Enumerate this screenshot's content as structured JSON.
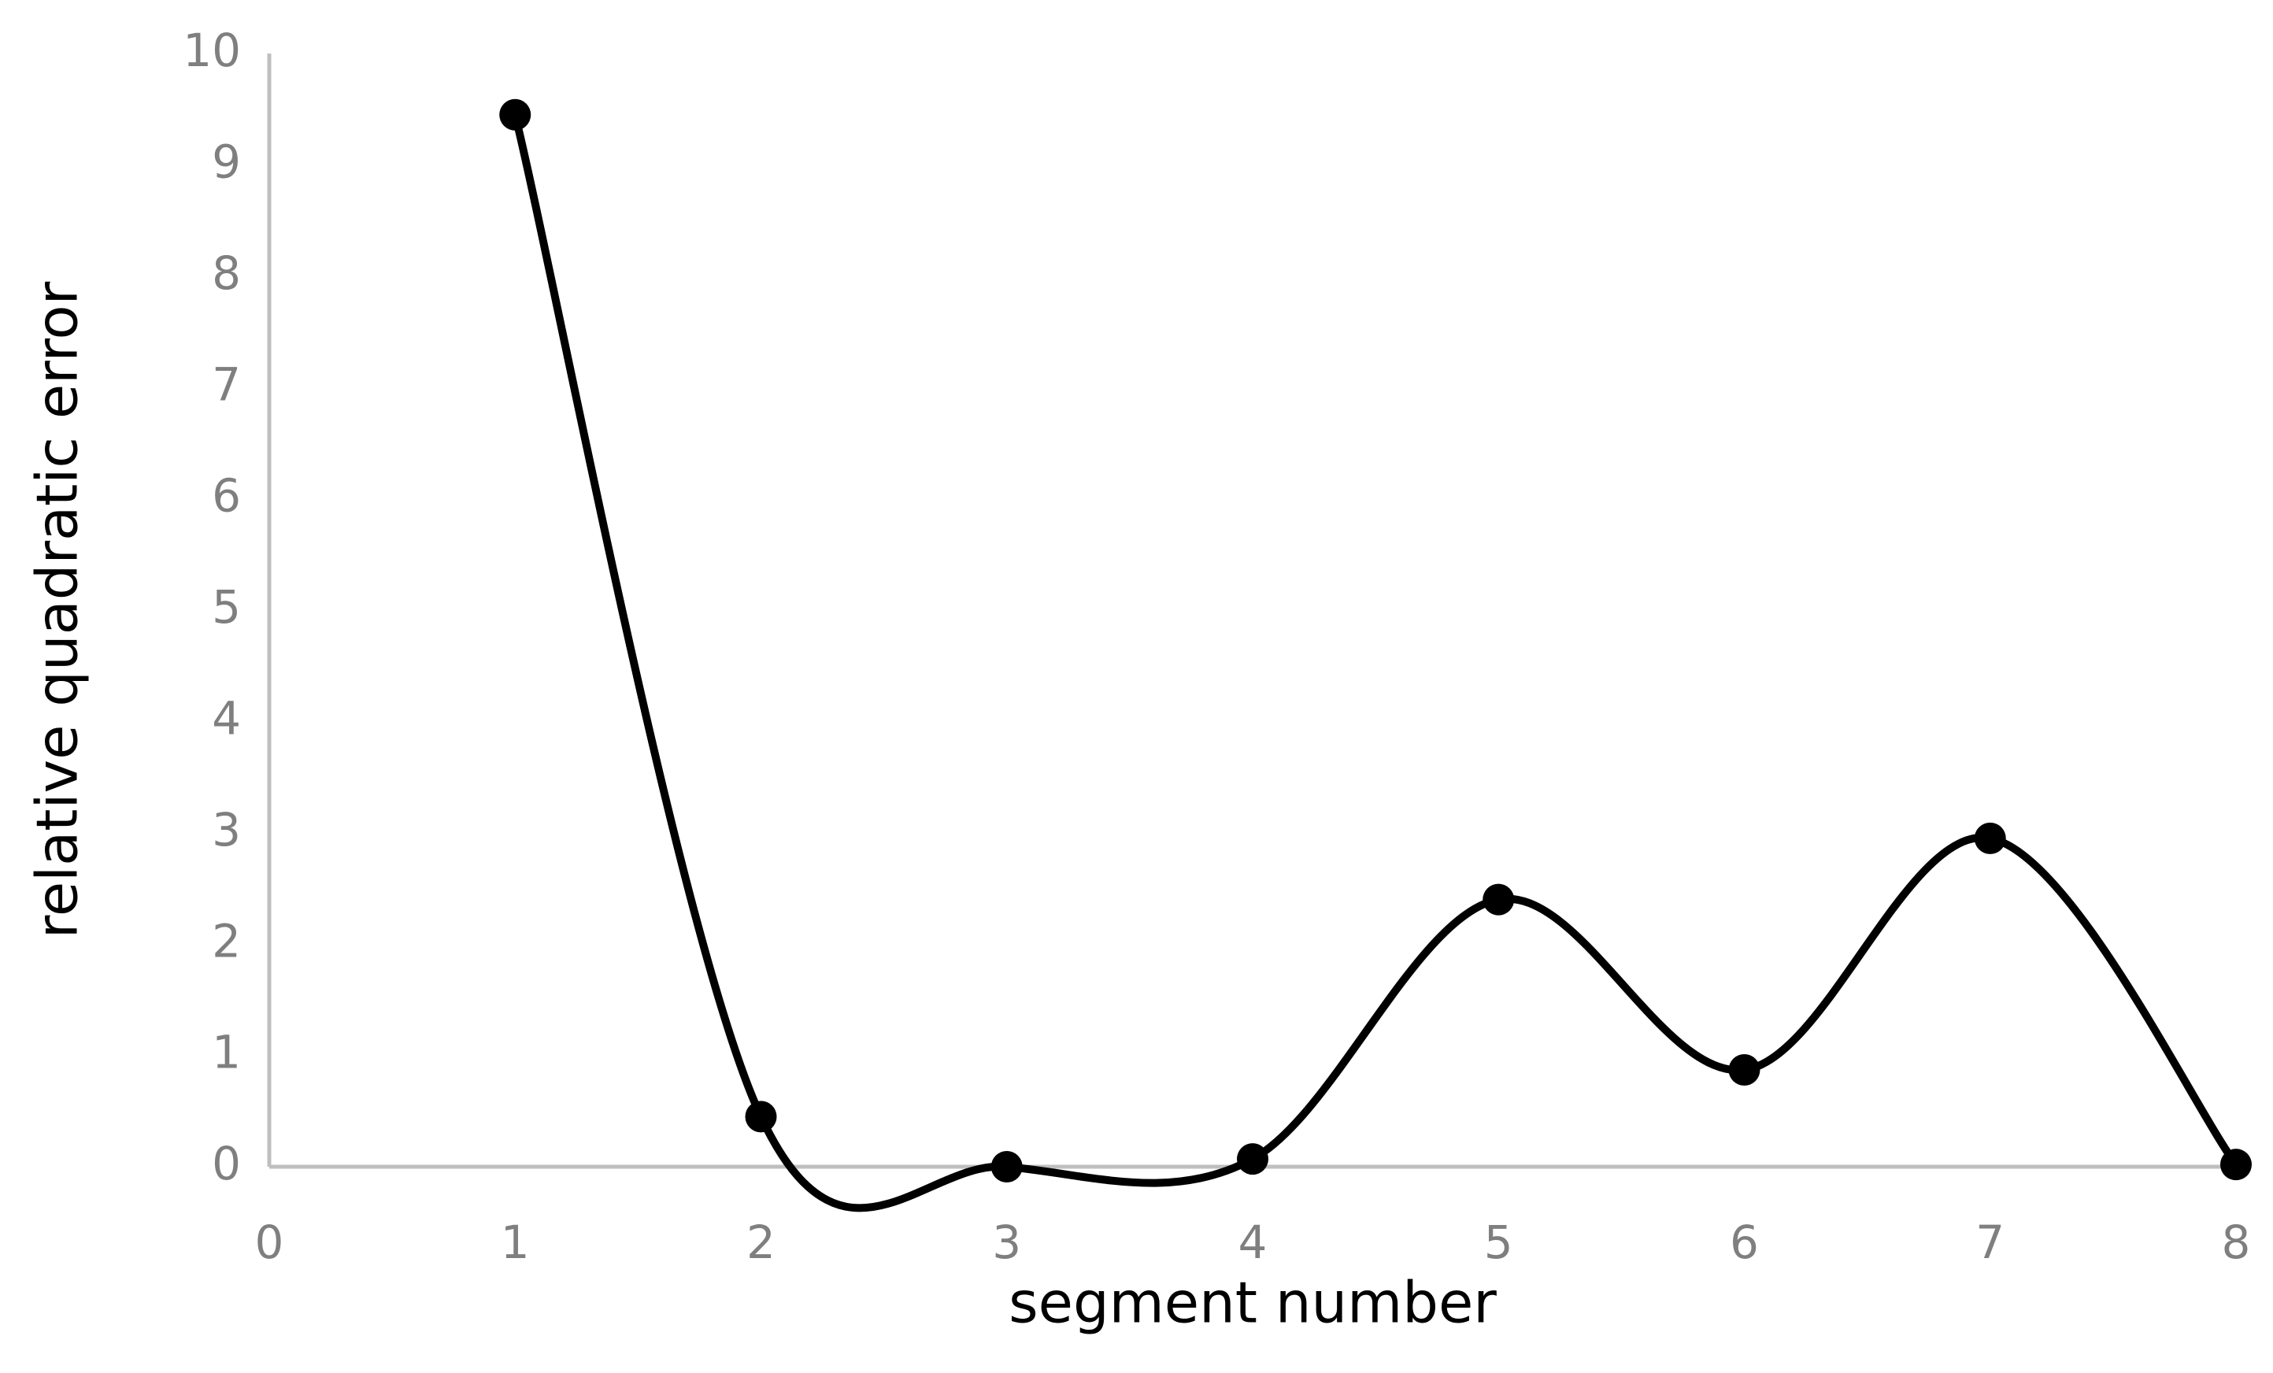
{
  "chart_data": {
    "type": "scatter",
    "smooth": true,
    "x_label": "segment number",
    "y_label": "relative quadratic error",
    "x": [
      1,
      2,
      3,
      4,
      5,
      6,
      7,
      8
    ],
    "series": [
      {
        "name": "relative quadratic error",
        "color": "#000000",
        "values": [
          9.45,
          0.45,
          0.0,
          0.07,
          2.4,
          0.87,
          2.95,
          0.02
        ]
      }
    ],
    "xlim": [
      0,
      8
    ],
    "xticks": [
      0,
      1,
      2,
      3,
      4,
      5,
      6,
      7,
      8
    ],
    "ylim": [
      0,
      10
    ],
    "yticks": [
      0,
      1,
      2,
      3,
      4,
      5,
      6,
      7,
      8,
      9,
      10
    ],
    "grid": false,
    "axis_color": "#bfbfbf"
  }
}
